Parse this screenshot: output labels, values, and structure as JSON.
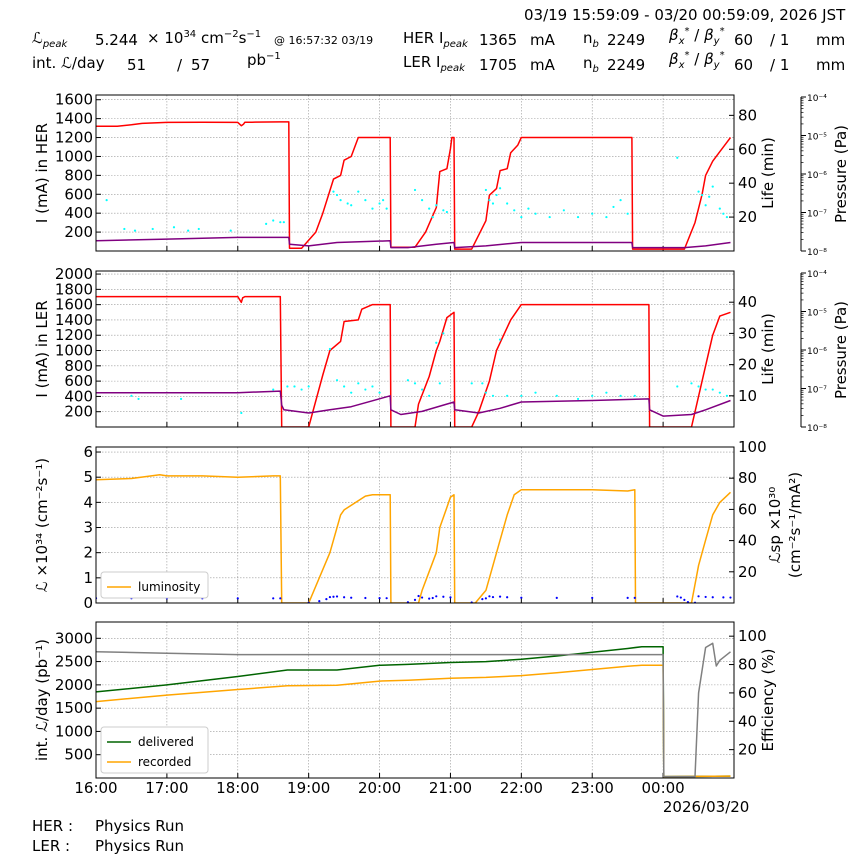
{
  "header": {
    "time_range": "03/19 15:59:09 - 03/20 00:59:09, 2026 JST",
    "lpeak_label": "peak",
    "lpeak_value": "5.244",
    "lpeak_unit_prefix": "× 10",
    "lpeak_unit_exp": "34",
    "lpeak_unit_rest": "cm",
    "lpeak_unit_cm_exp": "−2",
    "lpeak_unit_s": "s",
    "lpeak_unit_s_exp": "−1",
    "lpeak_time": "@ 16:57:32 03/19",
    "intl_label": "int.",
    "intl_suffix": "/day",
    "intl_value1": "51",
    "intl_slash": "/",
    "intl_value2": "57",
    "intl_unit": "pb",
    "intl_unit_exp": "−1",
    "her_label": "HER I",
    "her_sub": "peak",
    "her_value": "1365",
    "her_unit": "mA",
    "ler_label": "LER I",
    "ler_sub": "peak",
    "ler_value": "1705",
    "ler_unit": "mA",
    "nb_label": "n",
    "nb_sub": "b",
    "nb_her": "2249",
    "nb_ler": "2249",
    "beta_text": "β",
    "beta_x": "x",
    "beta_y": "y",
    "beta_star": "*",
    "beta_sep": " / ",
    "beta_her": "60",
    "beta_ler": "60",
    "beta_ratio": "/ 1",
    "beta_unit": "mm"
  },
  "footer": {
    "her_label": "HER :",
    "her_status": "Physics Run",
    "ler_label": "LER :",
    "ler_status": "Physics Run"
  },
  "colors": {
    "current": "#ff0000",
    "life": "#800080",
    "pressure": "#00ffff",
    "lumi": "#ffa500",
    "specific": "#0000ff",
    "delivered": "#006400",
    "recorded": "#ffa500",
    "efficiency": "#808080",
    "grid": "#999999"
  },
  "chart_data": [
    {
      "type": "line",
      "panel": "her",
      "ylabel": "I (mA) in HER",
      "ylabel2": "Life (min)",
      "ylabel3": "Pressure (Pa)",
      "ylim": [
        0,
        1650
      ],
      "yticks": [
        200,
        400,
        600,
        800,
        1000,
        1200,
        1400,
        1600
      ],
      "y2lim": [
        0,
        92
      ],
      "y2ticks": [
        20,
        40,
        60,
        80
      ],
      "y3ticks": [
        "10⁻⁸",
        "10⁻⁷",
        "10⁻⁶",
        "10⁻⁵",
        "10⁻⁴"
      ],
      "grid": true,
      "series": [
        {
          "role": "current",
          "x": [
            16.0,
            16.3,
            16.5,
            16.65,
            17.0,
            17.5,
            18.0,
            18.05,
            18.08,
            18.1,
            18.2,
            18.6,
            18.72,
            18.73,
            18.75,
            18.9,
            19.1,
            19.2,
            19.35,
            19.45,
            19.5,
            19.6,
            19.7,
            19.75,
            20.0,
            20.15,
            20.16,
            20.5,
            20.65,
            20.8,
            20.85,
            20.95,
            21.0,
            21.02,
            21.05,
            21.06,
            21.3,
            21.5,
            21.55,
            21.65,
            21.7,
            21.8,
            21.85,
            21.95,
            22.0,
            22.3,
            23.0,
            23.5,
            23.56,
            23.57,
            23.65,
            24.3,
            24.45,
            24.55,
            24.6,
            24.7,
            24.8,
            24.9,
            24.95
          ],
          "y": [
            1320,
            1320,
            1335,
            1350,
            1360,
            1362,
            1360,
            1325,
            1340,
            1362,
            1362,
            1365,
            1365,
            30,
            30,
            30,
            200,
            400,
            760,
            800,
            960,
            1000,
            1200,
            1200,
            1200,
            1200,
            40,
            40,
            200,
            460,
            840,
            870,
            1080,
            1200,
            1200,
            20,
            20,
            320,
            590,
            660,
            850,
            870,
            1040,
            1120,
            1200,
            1200,
            1200,
            1200,
            1200,
            20,
            20,
            20,
            300,
            600,
            800,
            950,
            1050,
            1150,
            1200
          ]
        },
        {
          "role": "life",
          "x": [
            16.0,
            17.0,
            18.0,
            18.72,
            18.73,
            19.0,
            19.4,
            20.15,
            20.16,
            20.4,
            20.8,
            21.05,
            21.06,
            21.5,
            22.0,
            23.56,
            23.57,
            24.3,
            24.6,
            24.95
          ],
          "y": [
            6,
            7,
            8,
            8,
            4,
            3,
            5,
            6,
            2,
            2,
            4,
            5,
            2,
            3,
            5,
            5,
            2,
            2,
            3,
            5
          ]
        },
        {
          "role": "pressure",
          "scatter": true,
          "x": [
            16.15,
            16.4,
            16.55,
            16.8,
            17.1,
            17.3,
            17.45,
            17.9,
            18.4,
            18.5,
            18.6,
            18.65,
            19.35,
            19.4,
            19.45,
            19.55,
            19.6,
            19.7,
            19.8,
            19.9,
            20.0,
            20.05,
            20.1,
            20.5,
            20.6,
            20.7,
            20.75,
            20.8,
            20.9,
            20.95,
            21.5,
            21.55,
            21.6,
            21.65,
            21.7,
            21.8,
            21.9,
            22.0,
            22.1,
            22.2,
            22.4,
            22.6,
            22.8,
            23.0,
            23.2,
            23.3,
            23.4,
            23.5,
            24.2,
            24.5,
            24.55,
            24.6,
            24.65,
            24.7,
            24.8,
            24.85,
            24.9
          ],
          "y": [
            30,
            13,
            12,
            13,
            14,
            12,
            13,
            12,
            16,
            18,
            17,
            17,
            35,
            33,
            30,
            28,
            27,
            35,
            30,
            25,
            28,
            30,
            25,
            36,
            30,
            25,
            20,
            27,
            24,
            23,
            36,
            30,
            28,
            33,
            37,
            28,
            24,
            20,
            25,
            22,
            20,
            24,
            20,
            22,
            20,
            26,
            30,
            22,
            55,
            35,
            33,
            27,
            32,
            38,
            25,
            22,
            20
          ]
        }
      ]
    },
    {
      "type": "line",
      "panel": "ler",
      "ylabel": "I (mA) in LER",
      "ylabel2": "Life (min)",
      "ylabel3": "Pressure (Pa)",
      "ylim": [
        0,
        2040
      ],
      "yticks": [
        200,
        400,
        600,
        800,
        1000,
        1200,
        1400,
        1600,
        1800,
        2000
      ],
      "y2lim": [
        0,
        50
      ],
      "y2ticks": [
        10,
        20,
        30,
        40
      ],
      "y3ticks": [
        "10⁻⁸",
        "10⁻⁷",
        "10⁻⁶",
        "10⁻⁵",
        "10⁻⁴"
      ],
      "grid": true,
      "series": [
        {
          "role": "current",
          "x": [
            16.0,
            18.0,
            18.05,
            18.07,
            18.1,
            18.6,
            18.62,
            18.75,
            18.85,
            19.0,
            19.2,
            19.3,
            19.45,
            19.5,
            19.7,
            19.75,
            19.9,
            20.15,
            20.16,
            20.5,
            20.55,
            20.7,
            20.8,
            20.85,
            20.95,
            21.05,
            21.06,
            21.3,
            21.4,
            21.55,
            21.65,
            21.75,
            21.85,
            22.0,
            23.0,
            23.8,
            23.81,
            24.4,
            24.6,
            24.7,
            24.8,
            24.95
          ],
          "y": [
            1705,
            1705,
            1630,
            1690,
            1705,
            1705,
            0,
            0,
            0,
            0,
            680,
            1000,
            1120,
            1380,
            1400,
            1540,
            1600,
            1600,
            0,
            0,
            300,
            660,
            1000,
            1120,
            1430,
            1500,
            0,
            0,
            200,
            600,
            1000,
            1200,
            1400,
            1600,
            1600,
            1600,
            0,
            0,
            800,
            1200,
            1450,
            1500
          ]
        },
        {
          "role": "life",
          "x": [
            16.0,
            17.0,
            18.0,
            18.6,
            18.62,
            18.65,
            19.0,
            19.3,
            19.6,
            20.15,
            20.16,
            20.3,
            20.6,
            21.05,
            21.06,
            21.4,
            21.7,
            22.0,
            23.0,
            23.8,
            23.81,
            24.0,
            24.4,
            24.6,
            24.95
          ],
          "y": [
            11,
            11,
            11,
            11.5,
            7,
            5.5,
            4.5,
            5.5,
            6.5,
            10,
            5.5,
            4,
            5,
            8,
            5.5,
            4.5,
            6,
            8,
            8.5,
            9,
            5.5,
            3.5,
            4,
            5.5,
            8.5
          ]
        },
        {
          "role": "pressure",
          "scatter": true,
          "x": [
            16.5,
            16.6,
            17.2,
            18.05,
            18.5,
            18.7,
            18.8,
            18.9,
            19.0,
            19.3,
            19.4,
            19.5,
            19.6,
            19.7,
            19.8,
            19.9,
            20.0,
            20.4,
            20.5,
            20.6,
            20.7,
            20.8,
            20.85,
            20.9,
            21.3,
            21.45,
            21.5,
            21.6,
            21.7,
            21.8,
            22.0,
            22.2,
            22.5,
            22.8,
            23.0,
            23.2,
            23.4,
            23.6,
            24.2,
            24.4,
            24.5,
            24.6,
            24.7,
            24.8,
            24.9
          ],
          "y": [
            10,
            9,
            9,
            4.5,
            12,
            13,
            13,
            12,
            13,
            25,
            15,
            13,
            11,
            14,
            12,
            13,
            11,
            15,
            14,
            12,
            10,
            27,
            14,
            30,
            14,
            14,
            11,
            10,
            28,
            10,
            10,
            11,
            10,
            9,
            10,
            11,
            10,
            10,
            13,
            14,
            13,
            12,
            12,
            11,
            10
          ]
        }
      ]
    },
    {
      "type": "line",
      "panel": "lumi",
      "ylabel": "ℒ ×10³⁴ (cm⁻²s⁻¹)",
      "ylabel2": "ℒsp ×10³⁰ (cm⁻²s⁻¹/mA²)",
      "ylim": [
        0,
        6.2
      ],
      "yticks": [
        0,
        1,
        2,
        3,
        4,
        5,
        6
      ],
      "y2lim": [
        0,
        100
      ],
      "y2ticks": [
        20,
        40,
        60,
        80,
        100
      ],
      "legend": [
        "luminosity"
      ],
      "legend_position": "lower-left",
      "grid": true,
      "series": [
        {
          "name": "luminosity",
          "role": "lumi",
          "x": [
            16.0,
            16.5,
            16.9,
            17.0,
            17.5,
            18.0,
            18.5,
            18.6,
            18.62,
            18.75,
            19.0,
            19.3,
            19.45,
            19.5,
            19.8,
            19.9,
            20.1,
            20.15,
            20.16,
            20.55,
            20.6,
            20.8,
            20.85,
            20.95,
            21.0,
            21.05,
            21.06,
            21.35,
            21.5,
            21.6,
            21.7,
            21.8,
            21.9,
            22.0,
            22.5,
            23.0,
            23.5,
            23.6,
            23.61,
            24.4,
            24.5,
            24.6,
            24.7,
            24.8,
            24.95
          ],
          "y": [
            4.9,
            4.95,
            5.1,
            5.05,
            5.05,
            5.0,
            5.05,
            5.05,
            0,
            0,
            0,
            2.0,
            3.5,
            3.7,
            4.25,
            4.3,
            4.3,
            4.3,
            0,
            0,
            0.5,
            2.0,
            3.0,
            3.8,
            4.2,
            4.3,
            0,
            0,
            0.5,
            1.5,
            2.5,
            3.5,
            4.3,
            4.5,
            4.5,
            4.5,
            4.45,
            4.5,
            0,
            0,
            1.5,
            2.5,
            3.5,
            4.0,
            4.4
          ]
        },
        {
          "role": "specific",
          "scatter": true,
          "x": [
            16.0,
            16.5,
            17.0,
            17.5,
            18.0,
            18.5,
            18.6,
            19.0,
            19.15,
            19.25,
            19.3,
            19.35,
            19.4,
            19.5,
            19.6,
            19.8,
            20.0,
            20.1,
            20.4,
            20.5,
            20.55,
            20.6,
            20.7,
            20.75,
            20.8,
            20.9,
            21.0,
            21.3,
            21.45,
            21.5,
            21.55,
            21.6,
            21.7,
            21.8,
            22.0,
            22.5,
            23.0,
            23.5,
            23.6,
            24.2,
            24.25,
            24.3,
            24.35,
            24.45,
            24.5,
            24.6,
            24.7,
            24.85,
            24.95
          ],
          "y": [
            3.05,
            3.05,
            3.0,
            3.0,
            3.0,
            3.0,
            3.0,
            0.2,
            1.2,
            2.5,
            3.8,
            4.0,
            4.2,
            3.7,
            3.4,
            3.2,
            3.15,
            3.1,
            0.5,
            2.0,
            4.5,
            3.5,
            2.8,
            3.2,
            4.3,
            4.0,
            3.6,
            0.3,
            2.5,
            3.0,
            4.3,
            3.8,
            4.1,
            3.7,
            3.4,
            3.3,
            3.3,
            3.3,
            3.3,
            4.2,
            3.5,
            2.0,
            0.6,
            0.2,
            4.3,
            3.9,
            3.7,
            3.6,
            3.5
          ]
        }
      ]
    },
    {
      "type": "line",
      "panel": "intl",
      "ylabel": "int. ℒ/day (pb⁻¹)",
      "ylabel2": "Efficiency (%)",
      "ylim": [
        0,
        3350
      ],
      "yticks": [
        500,
        1000,
        1500,
        2000,
        2500,
        3000
      ],
      "y2lim": [
        0,
        110
      ],
      "y2ticks": [
        20,
        40,
        60,
        80,
        100
      ],
      "legend": [
        "delivered",
        "recorded"
      ],
      "legend_position": "lower-left",
      "grid": true,
      "xlabel": "",
      "xticks": [
        "16:00",
        "17:00",
        "18:00",
        "19:00",
        "20:00",
        "21:00",
        "22:00",
        "23:00",
        "00:00"
      ],
      "date_label": "2026/03/20",
      "series": [
        {
          "name": "delivered",
          "role": "delivered",
          "x": [
            16.0,
            17.0,
            18.0,
            18.7,
            19.4,
            20.0,
            20.4,
            21.0,
            21.5,
            22.0,
            22.5,
            23.0,
            23.5,
            23.7,
            24.0,
            24.01,
            24.95
          ],
          "y": [
            1850,
            2000,
            2180,
            2320,
            2320,
            2420,
            2440,
            2480,
            2500,
            2550,
            2620,
            2700,
            2780,
            2820,
            2820,
            30,
            40
          ]
        },
        {
          "name": "recorded",
          "role": "recorded",
          "x": [
            16.0,
            17.0,
            18.0,
            18.7,
            19.4,
            20.0,
            20.4,
            21.0,
            21.5,
            22.0,
            22.5,
            23.0,
            23.5,
            23.7,
            24.0,
            24.01,
            24.95
          ],
          "y": [
            1640,
            1780,
            1900,
            1980,
            1990,
            2080,
            2100,
            2140,
            2160,
            2200,
            2260,
            2330,
            2400,
            2420,
            2420,
            30,
            40
          ]
        },
        {
          "role": "efficiency",
          "x": [
            16.0,
            17.0,
            18.0,
            19.0,
            20.0,
            21.0,
            22.0,
            23.0,
            24.0,
            24.01,
            24.45,
            24.5,
            24.6,
            24.7,
            24.75,
            24.8,
            24.95
          ],
          "y": [
            89,
            88,
            87,
            87,
            87,
            87,
            87,
            87,
            87,
            1,
            1,
            60,
            92,
            95,
            79,
            83,
            89
          ]
        }
      ]
    }
  ]
}
